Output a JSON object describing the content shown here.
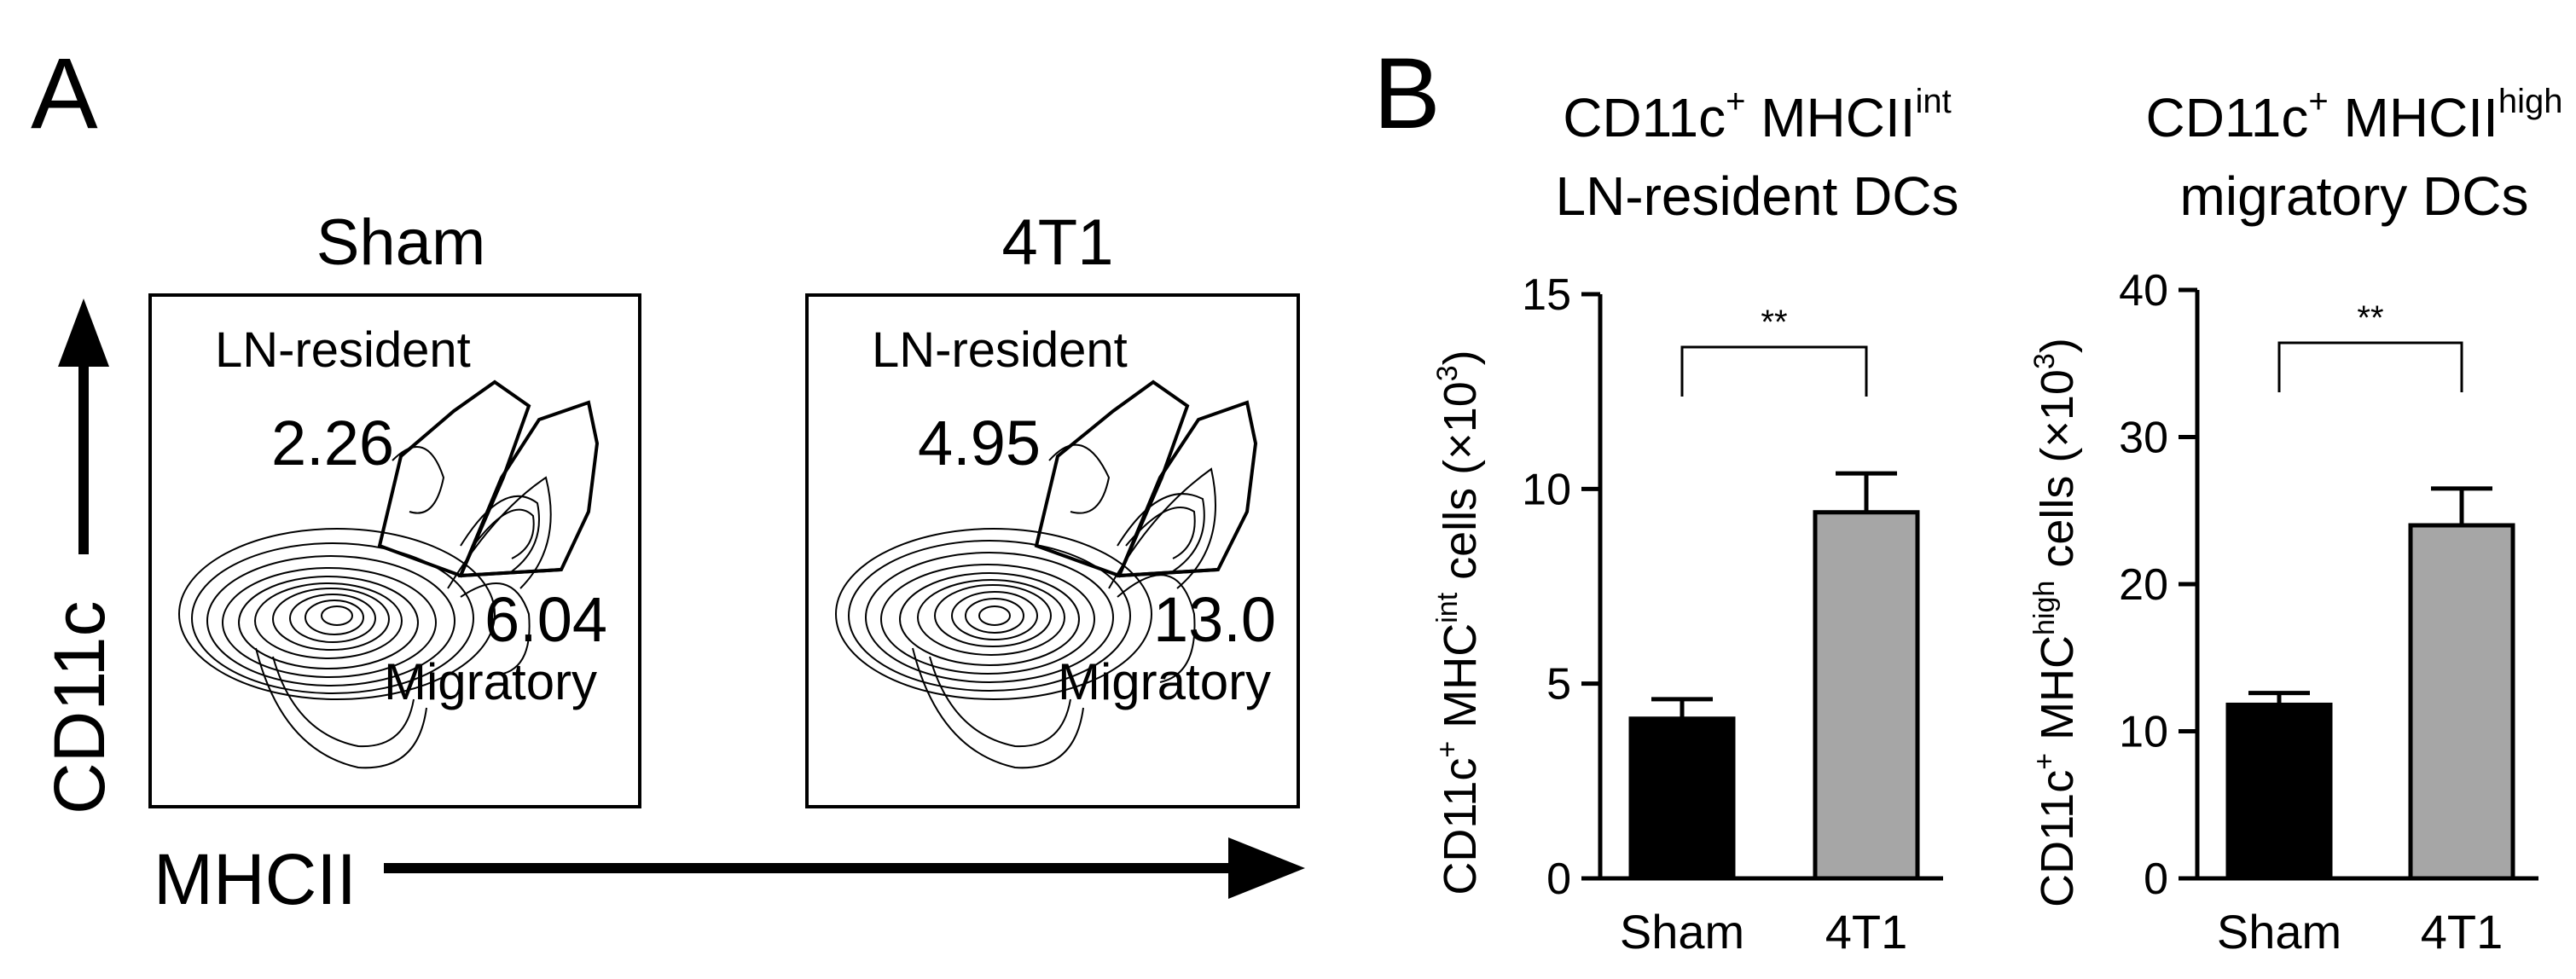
{
  "panel_a": {
    "letter": "A",
    "y_axis_label": "CD11c",
    "x_axis_label": "MHCII",
    "plots": [
      {
        "title": "Sham",
        "gate_upper_label": "LN-resident",
        "gate_upper_value": "2.26",
        "gate_lower_value": "6.04",
        "gate_lower_label": "Migratory"
      },
      {
        "title": "4T1",
        "gate_upper_label": "LN-resident",
        "gate_upper_value": "4.95",
        "gate_lower_value": "13.0",
        "gate_lower_label": "Migratory"
      }
    ]
  },
  "panel_b": {
    "letter": "B"
  },
  "colors": {
    "bar_sham": "#000000",
    "bar_4t1": "#a6a6a6",
    "axis": "#000000"
  },
  "chart_data": [
    {
      "type": "bar",
      "title_line1": "CD11c",
      "title_sup1": "+",
      "title_mid": " MHCII",
      "title_sup2": "int",
      "title_line2": "LN-resident DCs",
      "ylabel_a": "CD11c",
      "ylabel_sup1": "+",
      "ylabel_b": " MHC",
      "ylabel_sup2": "int",
      "ylabel_c": " cells (×10",
      "ylabel_sup3": "3",
      "ylabel_d": ")",
      "categories": [
        "Sham",
        "4T1"
      ],
      "values": [
        4.1,
        9.4
      ],
      "errors": [
        0.5,
        1.0
      ],
      "ylim": [
        0,
        15
      ],
      "yticks": [
        0,
        5,
        10,
        15
      ],
      "significance": "**"
    },
    {
      "type": "bar",
      "title_line1": "CD11c",
      "title_sup1": "+",
      "title_mid": " MHCII",
      "title_sup2": "high",
      "title_line2": "migratory DCs",
      "ylabel_a": "CD11c",
      "ylabel_sup1": "+",
      "ylabel_b": " MHC",
      "ylabel_sup2": "high",
      "ylabel_c": " cells (×10",
      "ylabel_sup3": "3",
      "ylabel_d": ")",
      "categories": [
        "Sham",
        "4T1"
      ],
      "values": [
        11.8,
        24.0
      ],
      "errors": [
        0.8,
        2.5
      ],
      "ylim": [
        0,
        40
      ],
      "yticks": [
        0,
        10,
        20,
        30,
        40
      ],
      "significance": "**"
    }
  ]
}
